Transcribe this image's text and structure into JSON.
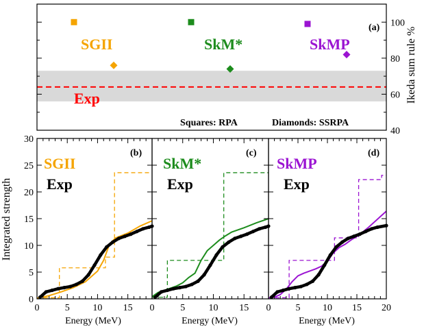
{
  "chart_data": [
    {
      "type": "scatter",
      "panel_label": "(a)",
      "ylabel": "Ikeda sum rule %",
      "ylim": [
        40,
        110
      ],
      "yticks": [
        "40",
        "60",
        "80",
        "100"
      ],
      "exp_band": {
        "label": "Exp",
        "value": 64,
        "low": 56,
        "high": 73
      },
      "legend_texts": [
        "Squares: RPA",
        "Diamonds: SSRPA"
      ],
      "groups": [
        {
          "name": "SGII",
          "color": "#f5a400",
          "rpa": 100,
          "ssrpa": 76
        },
        {
          "name": "SkM*",
          "color": "#1d8c1d",
          "rpa": 100,
          "ssrpa": 74
        },
        {
          "name": "SkMP",
          "color": "#9b14d2",
          "rpa": 99,
          "ssrpa": 82
        }
      ]
    },
    {
      "type": "line",
      "panel_label": "(b)",
      "ylabel": "Integrated strength",
      "xlabel": "Energy (MeV)",
      "xlim": [
        0,
        19
      ],
      "ylim": [
        0,
        30
      ],
      "xticks": [
        "0",
        "5",
        "10",
        "15"
      ],
      "yticks": [
        "0",
        "5",
        "10",
        "15",
        "20",
        "25",
        "30"
      ],
      "series": [
        {
          "name": "SGII",
          "color": "#f5a400",
          "style": "solid",
          "x": [
            0,
            2,
            4,
            6,
            8,
            10,
            11,
            12,
            13,
            15,
            17,
            19
          ],
          "y": [
            0.1,
            0.6,
            1.3,
            2.1,
            3.2,
            5.2,
            7.2,
            10.3,
            11.4,
            12.3,
            13.6,
            14.6
          ]
        },
        {
          "name": "SGII",
          "color": "#f5a400",
          "style": "dashed",
          "x": [
            0,
            3.7,
            3.7,
            11.3,
            11.3,
            12.8,
            12.8,
            19
          ],
          "y": [
            0.2,
            0.2,
            5.8,
            5.8,
            7.8,
            7.8,
            23.6,
            23.6
          ]
        },
        {
          "name": "Exp",
          "color": "#000000",
          "style": "dots",
          "x": [
            0.5,
            1.5,
            2.5,
            3.5,
            4.5,
            5.5,
            6.5,
            7.5,
            8.5,
            9.5,
            10.5,
            11.5,
            12.5,
            13.5,
            14.5,
            15.5,
            16.5,
            17.5,
            18.5,
            19
          ],
          "y": [
            0.3,
            1.3,
            1.6,
            1.9,
            2.1,
            2.3,
            2.7,
            3.3,
            4.5,
            6.3,
            8.2,
            9.7,
            10.6,
            11.3,
            11.7,
            12.1,
            12.6,
            13.1,
            13.4,
            13.6
          ]
        }
      ]
    },
    {
      "type": "line",
      "panel_label": "(c)",
      "xlabel": "Energy (MeV)",
      "xlim": [
        0,
        19
      ],
      "ylim": [
        0,
        30
      ],
      "xticks": [
        "0",
        "5",
        "10",
        "15"
      ],
      "series": [
        {
          "name": "SkM*",
          "color": "#1d8c1d",
          "style": "solid",
          "x": [
            0,
            1,
            2,
            3,
            4,
            5,
            6,
            7,
            8,
            9,
            10,
            11,
            12,
            13,
            15,
            17,
            19
          ],
          "y": [
            0.4,
            1.2,
            1.6,
            2.0,
            2.4,
            3.0,
            4.0,
            4.8,
            7.2,
            9.0,
            10.0,
            11.0,
            11.8,
            12.5,
            13.3,
            14.2,
            15.0
          ]
        },
        {
          "name": "SkM*",
          "color": "#1d8c1d",
          "style": "dashed",
          "x": [
            0,
            2.5,
            2.5,
            11.7,
            11.7,
            19
          ],
          "y": [
            0.3,
            0.3,
            7.2,
            7.2,
            23.6,
            23.6
          ]
        },
        {
          "name": "Exp",
          "color": "#000000",
          "style": "dots",
          "x": [
            0.5,
            1.5,
            2.5,
            3.5,
            4.5,
            5.5,
            6.5,
            7.5,
            8.5,
            9.5,
            10.5,
            11.5,
            12.5,
            13.5,
            14.5,
            15.5,
            16.5,
            17.5,
            18.5,
            19
          ],
          "y": [
            0.3,
            1.3,
            1.6,
            1.9,
            2.1,
            2.3,
            2.7,
            3.3,
            4.5,
            6.3,
            8.2,
            9.7,
            10.6,
            11.3,
            11.7,
            12.1,
            12.6,
            13.1,
            13.4,
            13.6
          ]
        }
      ]
    },
    {
      "type": "line",
      "panel_label": "(d)",
      "xlabel": "Energy (MeV)",
      "xlim": [
        0,
        20
      ],
      "ylim": [
        0,
        30
      ],
      "xticks": [
        "0",
        "5",
        "10",
        "15",
        "20"
      ],
      "series": [
        {
          "name": "SkMP",
          "color": "#9b14d2",
          "style": "solid",
          "x": [
            0,
            1,
            2,
            3,
            4,
            5,
            6,
            7,
            8,
            9,
            10,
            11,
            12,
            13,
            14,
            15,
            16,
            17,
            18,
            19,
            20
          ],
          "y": [
            0.2,
            0.3,
            0.8,
            1.8,
            3.2,
            4.3,
            4.8,
            5.2,
            5.6,
            6.1,
            7.0,
            8.6,
            9.6,
            10.2,
            11.0,
            11.7,
            12.5,
            13.4,
            14.4,
            15.4,
            16.4
          ]
        },
        {
          "name": "SkMP",
          "color": "#9b14d2",
          "style": "dashed",
          "x": [
            0,
            3.5,
            3.5,
            11.2,
            11.2,
            15.3,
            15.3,
            19.2,
            19.2,
            20
          ],
          "y": [
            0.2,
            0.2,
            7.2,
            7.2,
            11.4,
            11.4,
            22.3,
            22.3,
            23.1,
            23.1
          ]
        },
        {
          "name": "Exp",
          "color": "#000000",
          "style": "dots",
          "x": [
            0.5,
            1.5,
            2.5,
            3.5,
            4.5,
            5.5,
            6.5,
            7.5,
            8.5,
            9.5,
            10.5,
            11.5,
            12.5,
            13.5,
            14.5,
            15.5,
            16.5,
            17.5,
            18.5,
            20
          ],
          "y": [
            0.3,
            1.3,
            1.6,
            1.9,
            2.1,
            2.3,
            2.7,
            3.3,
            4.5,
            6.3,
            8.2,
            9.7,
            10.6,
            11.3,
            11.7,
            12.1,
            12.6,
            13.1,
            13.4,
            13.7
          ]
        }
      ]
    }
  ]
}
